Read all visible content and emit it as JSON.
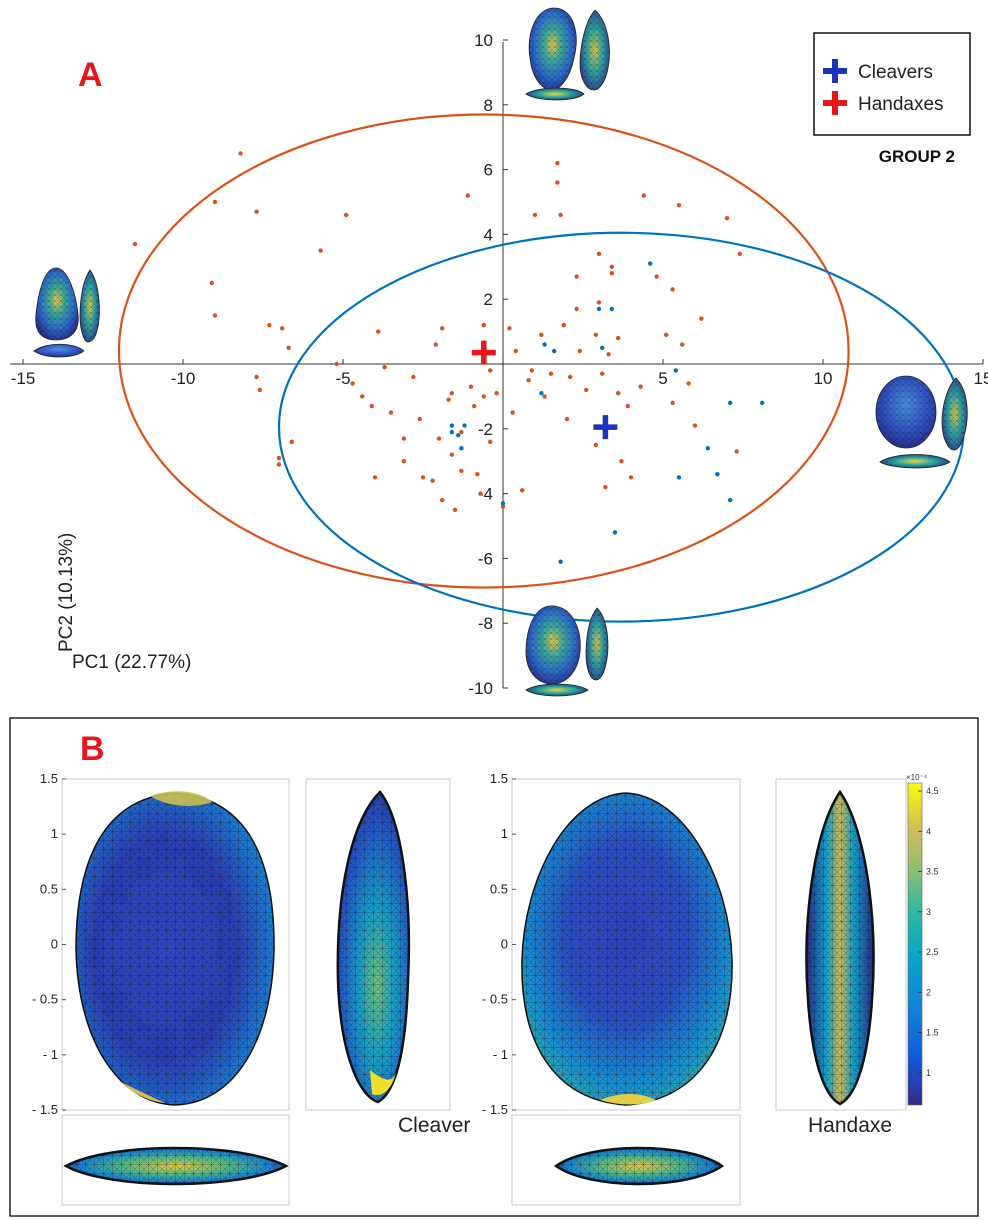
{
  "panel_a": {
    "label": "A",
    "legend": {
      "items": [
        {
          "name": "Cleavers",
          "color": "#1f33b8"
        },
        {
          "name": "Handaxes",
          "color": "#e8151b"
        }
      ],
      "group": "GROUP 2"
    },
    "xlabel": "PC1 (22.77%)",
    "ylabel": "PC2 (10.13%)",
    "colors": {
      "handaxes": "#d95319",
      "cleavers": "#0072bd"
    }
  },
  "chart_data": [
    {
      "type": "scatter",
      "xlabel": "PC1 (22.77%)",
      "ylabel": "PC2 (10.13%)",
      "xlim": [
        -15,
        15
      ],
      "ylim": [
        -10,
        10
      ],
      "x_ticks": [
        "-15",
        "-10",
        "-5",
        "5",
        "10",
        "15"
      ],
      "y_ticks": [
        "10",
        "8",
        "6",
        "4",
        "2",
        "-2",
        "-4",
        "-6",
        "-8",
        "-10"
      ],
      "series": [
        {
          "name": "Handaxes",
          "color": "#d95319",
          "mean": [
            -0.6,
            0.35
          ],
          "ellipse": {
            "center": [
              -0.6,
              0.4
            ],
            "radius_x": 11.4,
            "radius_y": 7.3
          },
          "points": [
            [
              -11.5,
              3.7
            ],
            [
              -9.1,
              2.5
            ],
            [
              -9.0,
              1.5
            ],
            [
              -9.0,
              5.0
            ],
            [
              -8.2,
              6.5
            ],
            [
              -7.7,
              4.7
            ],
            [
              -7.7,
              -0.4
            ],
            [
              -7.6,
              -0.8
            ],
            [
              -7.3,
              1.2
            ],
            [
              -6.9,
              1.1
            ],
            [
              -6.7,
              0.5
            ],
            [
              -6.6,
              -2.4
            ],
            [
              -7.0,
              -2.9
            ],
            [
              -7.0,
              -3.1
            ],
            [
              -5.7,
              3.5
            ],
            [
              -5.2,
              0.0
            ],
            [
              -4.9,
              4.6
            ],
            [
              -4.7,
              -0.6
            ],
            [
              -4.4,
              -1.0
            ],
            [
              -4.1,
              -1.3
            ],
            [
              -4.0,
              -3.5
            ],
            [
              -3.9,
              1.0
            ],
            [
              -3.7,
              -0.1
            ],
            [
              -3.5,
              -1.5
            ],
            [
              -3.1,
              -3.0
            ],
            [
              -3.1,
              -2.3
            ],
            [
              -2.6,
              -1.7
            ],
            [
              -2.8,
              -0.4
            ],
            [
              -2.5,
              -3.5
            ],
            [
              -2.2,
              -3.6
            ],
            [
              -2.1,
              0.6
            ],
            [
              -2.0,
              -2.3
            ],
            [
              -1.9,
              -4.2
            ],
            [
              -1.9,
              1.1
            ],
            [
              -1.7,
              -1.1
            ],
            [
              -1.6,
              -0.9
            ],
            [
              -1.6,
              -2.8
            ],
            [
              -1.5,
              -4.5
            ],
            [
              -1.3,
              -2.1
            ],
            [
              -1.3,
              -3.3
            ],
            [
              -1.0,
              -0.7
            ],
            [
              -0.9,
              -1.3
            ],
            [
              -0.8,
              -3.4
            ],
            [
              -0.7,
              -4.0
            ],
            [
              -0.6,
              -1.0
            ],
            [
              -0.6,
              1.2
            ],
            [
              -0.4,
              -2.4
            ],
            [
              -0.4,
              -0.2
            ],
            [
              -1.1,
              5.2
            ],
            [
              -0.2,
              -0.9
            ],
            [
              0.0,
              -4.4
            ],
            [
              0.2,
              1.1
            ],
            [
              0.3,
              -1.5
            ],
            [
              0.4,
              0.4
            ],
            [
              0.6,
              -3.9
            ],
            [
              0.8,
              -0.5
            ],
            [
              0.9,
              -0.2
            ],
            [
              1.0,
              4.6
            ],
            [
              1.2,
              0.9
            ],
            [
              1.3,
              -1.0
            ],
            [
              1.5,
              -0.3
            ],
            [
              1.7,
              6.2
            ],
            [
              1.7,
              5.6
            ],
            [
              1.8,
              4.6
            ],
            [
              1.9,
              1.2
            ],
            [
              2.0,
              -1.7
            ],
            [
              2.1,
              -0.4
            ],
            [
              2.3,
              1.7
            ],
            [
              2.3,
              2.7
            ],
            [
              2.4,
              0.4
            ],
            [
              2.6,
              -0.8
            ],
            [
              2.9,
              0.9
            ],
            [
              2.9,
              -2.5
            ],
            [
              3.0,
              3.4
            ],
            [
              3.0,
              1.9
            ],
            [
              3.1,
              -0.3
            ],
            [
              3.2,
              -3.8
            ],
            [
              3.3,
              0.3
            ],
            [
              3.4,
              2.8
            ],
            [
              3.4,
              3.0
            ],
            [
              3.6,
              -0.9
            ],
            [
              3.6,
              0.8
            ],
            [
              3.7,
              -3.0
            ],
            [
              3.9,
              -1.3
            ],
            [
              4.0,
              -3.5
            ],
            [
              4.3,
              -0.7
            ],
            [
              4.4,
              5.2
            ],
            [
              4.8,
              2.7
            ],
            [
              5.1,
              0.9
            ],
            [
              5.3,
              -1.2
            ],
            [
              5.5,
              4.9
            ],
            [
              5.6,
              0.6
            ],
            [
              5.8,
              -0.6
            ],
            [
              6.0,
              -1.9
            ],
            [
              6.2,
              1.4
            ],
            [
              7.0,
              4.5
            ],
            [
              7.3,
              -2.7
            ],
            [
              7.4,
              3.4
            ],
            [
              5.3,
              2.3
            ]
          ]
        },
        {
          "name": "Cleavers",
          "color": "#0072bd",
          "mean": [
            3.2,
            -1.95
          ],
          "ellipse": {
            "center": [
              3.7,
              -1.95
            ],
            "radius_x": 10.7,
            "radius_y": 6.0
          },
          "points": [
            [
              -1.6,
              -1.9
            ],
            [
              -1.6,
              -2.1
            ],
            [
              -1.4,
              -2.2
            ],
            [
              -1.3,
              -2.6
            ],
            [
              -1.2,
              -1.9
            ],
            [
              0.0,
              -4.3
            ],
            [
              1.2,
              -0.9
            ],
            [
              1.3,
              0.6
            ],
            [
              1.6,
              0.4
            ],
            [
              1.8,
              -6.1
            ],
            [
              3.0,
              1.7
            ],
            [
              3.1,
              0.5
            ],
            [
              3.4,
              1.7
            ],
            [
              3.5,
              -5.2
            ],
            [
              4.6,
              3.1
            ],
            [
              5.5,
              -3.5
            ],
            [
              5.4,
              -0.2
            ],
            [
              6.4,
              -2.6
            ],
            [
              6.7,
              -3.4
            ],
            [
              7.1,
              -4.2
            ],
            [
              8.1,
              -1.2
            ],
            [
              7.1,
              -1.2
            ]
          ]
        }
      ]
    },
    {
      "type": "heatmap",
      "label": "B",
      "y_ticks": [
        "1.5",
        "1",
        "0.5",
        "0",
        "- 0.5",
        "- 1",
        "- 1.5"
      ],
      "colorbar": {
        "ticks": [
          "4.5",
          "4",
          "3.5",
          "3",
          "2.5",
          "2",
          "1.5",
          "1"
        ],
        "exponent": "×10⁻⁴",
        "range": [
          0.6,
          4.6
        ]
      },
      "models": [
        "Cleaver",
        "Handaxe"
      ]
    }
  ],
  "panel_b": {
    "label": "B",
    "models": [
      {
        "name": "Cleaver"
      },
      {
        "name": "Handaxe"
      }
    ]
  }
}
